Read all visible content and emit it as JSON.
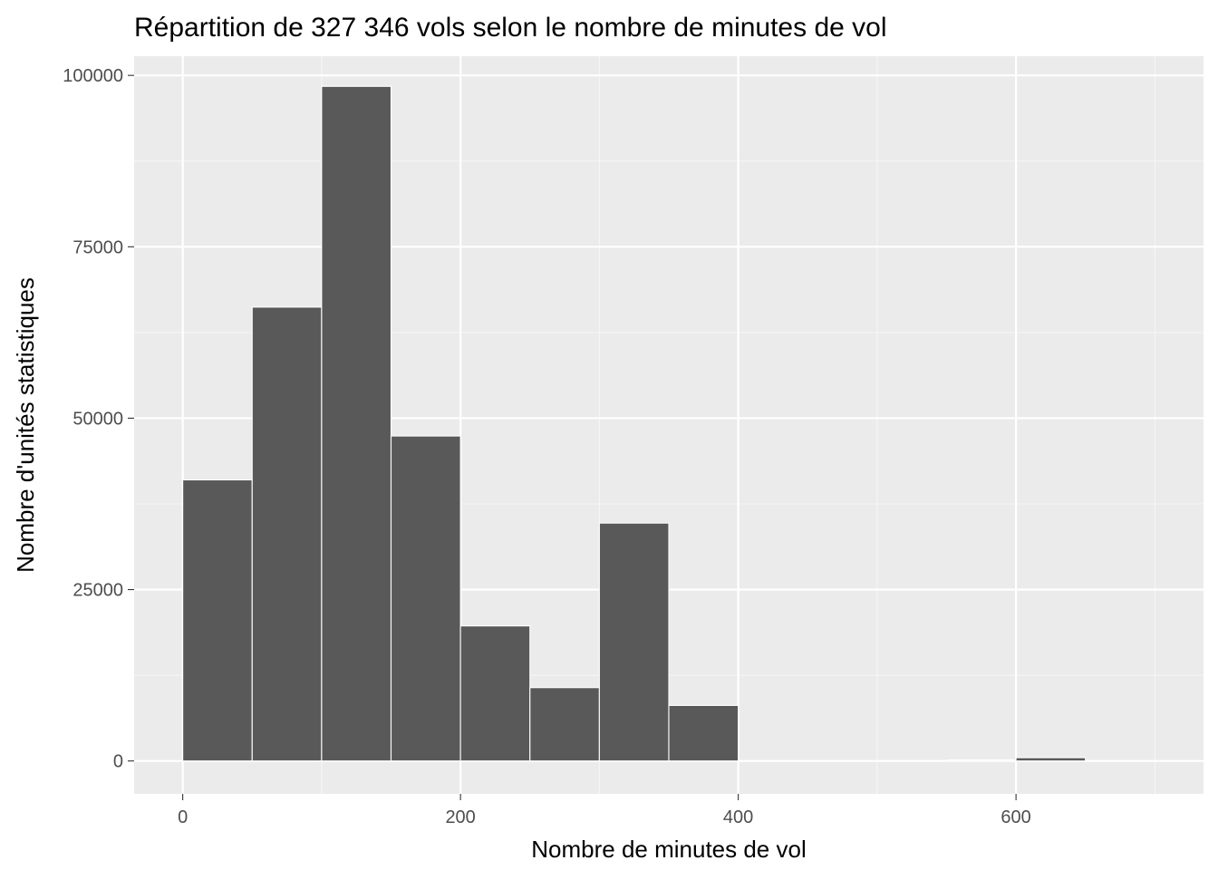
{
  "chart_data": {
    "type": "bar",
    "title": "Répartition de 327 346 vols selon le nombre de minutes de vol",
    "xlabel": "Nombre de minutes de vol",
    "ylabel": "Nombre d'unités statistiques",
    "xlim": [
      -35,
      735
    ],
    "ylim": [
      -4800,
      102800
    ],
    "x_ticks": [
      0,
      200,
      400,
      600
    ],
    "x_minor_ticks": [
      100,
      300,
      500,
      700
    ],
    "y_ticks": [
      0,
      25000,
      50000,
      75000,
      100000
    ],
    "y_minor_ticks": [
      12500,
      37500,
      62500,
      87500
    ],
    "bin_width": 50,
    "bins": [
      {
        "x0": 0,
        "x1": 50,
        "count": 41000
      },
      {
        "x0": 50,
        "x1": 100,
        "count": 66200
      },
      {
        "x0": 100,
        "x1": 150,
        "count": 98400
      },
      {
        "x0": 150,
        "x1": 200,
        "count": 47400
      },
      {
        "x0": 200,
        "x1": 250,
        "count": 19700
      },
      {
        "x0": 250,
        "x1": 300,
        "count": 10700
      },
      {
        "x0": 300,
        "x1": 350,
        "count": 34700
      },
      {
        "x0": 350,
        "x1": 400,
        "count": 8100
      },
      {
        "x0": 400,
        "x1": 450,
        "count": 0
      },
      {
        "x0": 450,
        "x1": 500,
        "count": 0
      },
      {
        "x0": 500,
        "x1": 550,
        "count": 0
      },
      {
        "x0": 550,
        "x1": 600,
        "count": 150
      },
      {
        "x0": 600,
        "x1": 650,
        "count": 480
      }
    ],
    "grid": true,
    "legend": "none",
    "colors": {
      "panel_background": "#ebebeb",
      "grid_major": "#ffffff",
      "grid_minor": "#f6f6f6",
      "bar_fill": "#595959",
      "bar_outline": "#ffffff",
      "tick_text": "#4d4d4d",
      "tick_mark": "#333333"
    }
  }
}
